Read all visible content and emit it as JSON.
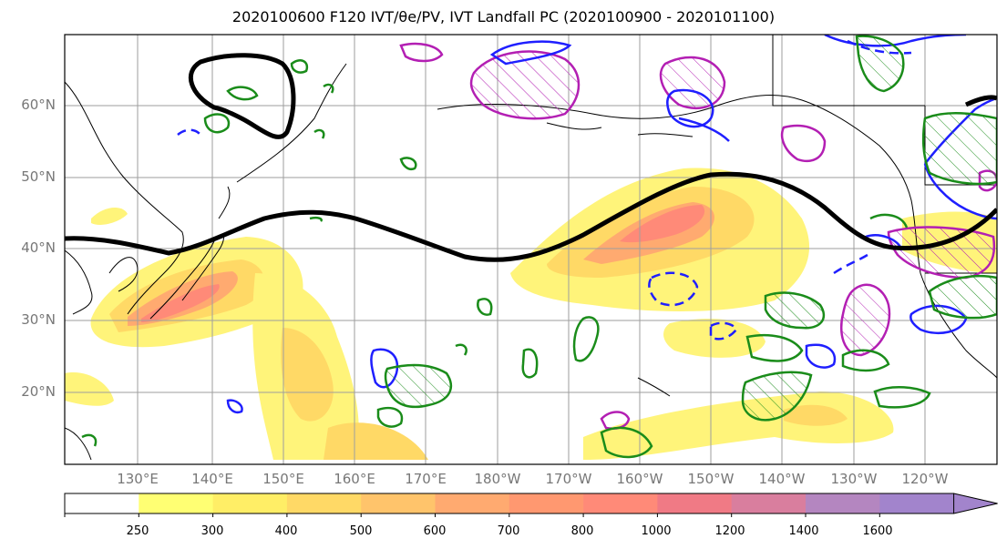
{
  "title": "2020100600 F120 IVT/θe/PV, IVT Landfall PC (2020100900 - 2020101100)",
  "lat_labels": [
    "60°N",
    "50°N",
    "40°N",
    "30°N",
    "20°N"
  ],
  "lon_labels": [
    "130°E",
    "140°E",
    "150°E",
    "160°E",
    "170°E",
    "180°W",
    "170°W",
    "160°W",
    "150°W",
    "140°W",
    "130°W",
    "120°W"
  ],
  "colorbar": {
    "levels": [
      "250",
      "300",
      "400",
      "500",
      "600",
      "700",
      "800",
      "1000",
      "1200",
      "1400",
      "1600"
    ],
    "colors": [
      "#ffffff",
      "#ffff73",
      "#ffee66",
      "#ffd966",
      "#ffc46b",
      "#ffaa70",
      "#ff9870",
      "#ff8a78",
      "#f07a85",
      "#d97e9e",
      "#b486c0",
      "#a284cc"
    ]
  },
  "legend_colors": {
    "ivt_contour": "#000000",
    "pv_positive": "#1f1fff",
    "pv_negative": "#b31fb3",
    "theta_e": "#1a8c1a"
  }
}
